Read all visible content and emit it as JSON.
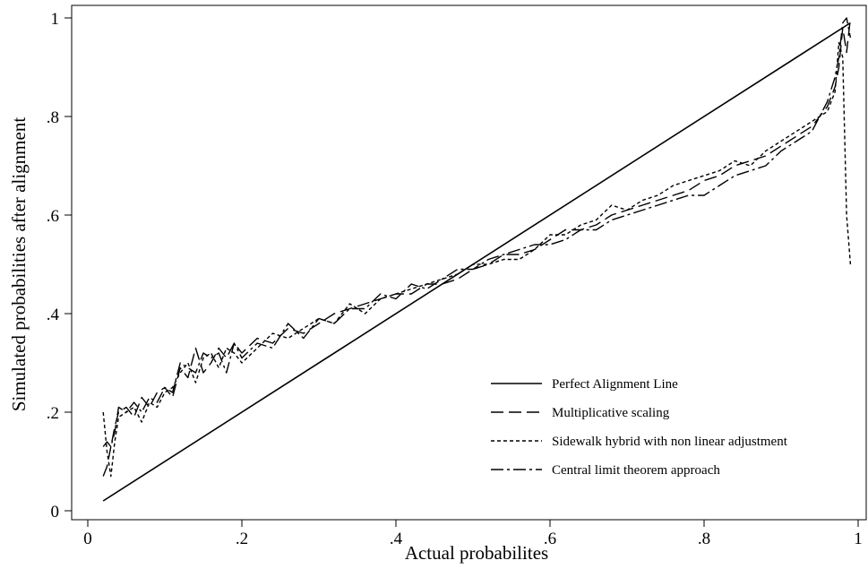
{
  "chart_data": {
    "type": "line",
    "xlabel": "Actual probabilites",
    "ylabel": "Simulated probabilities after alignment",
    "xlim": [
      0,
      1
    ],
    "ylim": [
      0,
      1
    ],
    "x_ticks": [
      {
        "value": 0,
        "label": "0"
      },
      {
        "value": 0.2,
        "label": ".2"
      },
      {
        "value": 0.4,
        "label": ".4"
      },
      {
        "value": 0.6,
        "label": ".6"
      },
      {
        "value": 0.8,
        "label": ".8"
      },
      {
        "value": 1,
        "label": "1"
      }
    ],
    "y_ticks": [
      {
        "value": 0,
        "label": "0"
      },
      {
        "value": 0.2,
        "label": ".2"
      },
      {
        "value": 0.4,
        "label": ".4"
      },
      {
        "value": 0.6,
        "label": ".6"
      },
      {
        "value": 0.8,
        "label": ".8"
      },
      {
        "value": 1,
        "label": "1"
      }
    ],
    "grid": false,
    "legend_position": "bottom-right",
    "series": [
      {
        "name": "Perfect Alignment Line",
        "style": "solid",
        "color": "#000000",
        "x": [
          0.02,
          0.99
        ],
        "y": [
          0.02,
          0.99
        ]
      },
      {
        "name": "Multiplicative scaling",
        "style": "dash",
        "color": "#000000",
        "x": [
          0.02,
          0.025,
          0.03,
          0.035,
          0.04,
          0.05,
          0.06,
          0.07,
          0.08,
          0.09,
          0.1,
          0.11,
          0.12,
          0.13,
          0.14,
          0.15,
          0.16,
          0.17,
          0.18,
          0.19,
          0.2,
          0.22,
          0.24,
          0.26,
          0.28,
          0.3,
          0.32,
          0.34,
          0.36,
          0.38,
          0.4,
          0.42,
          0.44,
          0.46,
          0.48,
          0.5,
          0.52,
          0.54,
          0.56,
          0.58,
          0.6,
          0.62,
          0.64,
          0.66,
          0.68,
          0.7,
          0.72,
          0.74,
          0.76,
          0.78,
          0.8,
          0.82,
          0.84,
          0.86,
          0.88,
          0.9,
          0.92,
          0.94,
          0.95,
          0.96,
          0.97,
          0.975,
          0.98,
          0.985,
          0.99
        ],
        "y": [
          0.07,
          0.09,
          0.13,
          0.17,
          0.2,
          0.21,
          0.19,
          0.23,
          0.21,
          0.24,
          0.25,
          0.23,
          0.29,
          0.27,
          0.33,
          0.28,
          0.3,
          0.33,
          0.31,
          0.34,
          0.32,
          0.35,
          0.34,
          0.37,
          0.36,
          0.38,
          0.4,
          0.41,
          0.42,
          0.43,
          0.44,
          0.44,
          0.46,
          0.46,
          0.47,
          0.49,
          0.5,
          0.52,
          0.52,
          0.53,
          0.55,
          0.57,
          0.57,
          0.58,
          0.6,
          0.61,
          0.62,
          0.63,
          0.64,
          0.65,
          0.67,
          0.68,
          0.7,
          0.71,
          0.72,
          0.74,
          0.76,
          0.78,
          0.8,
          0.82,
          0.86,
          0.9,
          0.98,
          0.93,
          1.0
        ]
      },
      {
        "name": "Sidewalk hybrid with non linear adjustment",
        "style": "dot",
        "color": "#000000",
        "x": [
          0.02,
          0.025,
          0.03,
          0.035,
          0.04,
          0.05,
          0.06,
          0.07,
          0.08,
          0.09,
          0.1,
          0.11,
          0.12,
          0.13,
          0.14,
          0.15,
          0.16,
          0.17,
          0.18,
          0.19,
          0.2,
          0.22,
          0.24,
          0.26,
          0.28,
          0.3,
          0.32,
          0.34,
          0.36,
          0.38,
          0.4,
          0.42,
          0.44,
          0.46,
          0.48,
          0.5,
          0.52,
          0.54,
          0.56,
          0.58,
          0.6,
          0.62,
          0.64,
          0.66,
          0.68,
          0.7,
          0.72,
          0.74,
          0.76,
          0.78,
          0.8,
          0.82,
          0.84,
          0.86,
          0.88,
          0.9,
          0.92,
          0.94,
          0.95,
          0.96,
          0.97,
          0.975,
          0.98,
          0.985,
          0.99
        ],
        "y": [
          0.2,
          0.12,
          0.07,
          0.14,
          0.19,
          0.2,
          0.21,
          0.18,
          0.22,
          0.21,
          0.24,
          0.25,
          0.28,
          0.3,
          0.26,
          0.31,
          0.32,
          0.29,
          0.33,
          0.32,
          0.3,
          0.33,
          0.36,
          0.35,
          0.37,
          0.39,
          0.38,
          0.42,
          0.4,
          0.43,
          0.44,
          0.45,
          0.46,
          0.47,
          0.48,
          0.5,
          0.5,
          0.51,
          0.51,
          0.53,
          0.56,
          0.56,
          0.58,
          0.59,
          0.62,
          0.61,
          0.63,
          0.64,
          0.66,
          0.67,
          0.68,
          0.69,
          0.71,
          0.7,
          0.73,
          0.75,
          0.77,
          0.79,
          0.8,
          0.81,
          0.85,
          0.95,
          0.92,
          0.6,
          0.5
        ]
      },
      {
        "name": "Central limit theorem approach",
        "style": "dashdot",
        "color": "#000000",
        "x": [
          0.02,
          0.025,
          0.03,
          0.035,
          0.04,
          0.05,
          0.06,
          0.07,
          0.08,
          0.09,
          0.1,
          0.11,
          0.12,
          0.13,
          0.14,
          0.15,
          0.16,
          0.17,
          0.18,
          0.19,
          0.2,
          0.22,
          0.24,
          0.26,
          0.28,
          0.3,
          0.32,
          0.34,
          0.36,
          0.38,
          0.4,
          0.42,
          0.44,
          0.46,
          0.48,
          0.5,
          0.52,
          0.54,
          0.56,
          0.58,
          0.6,
          0.62,
          0.64,
          0.66,
          0.68,
          0.7,
          0.72,
          0.74,
          0.76,
          0.78,
          0.8,
          0.82,
          0.84,
          0.86,
          0.88,
          0.9,
          0.92,
          0.94,
          0.95,
          0.96,
          0.97,
          0.975,
          0.98,
          0.985,
          0.99
        ],
        "y": [
          0.13,
          0.14,
          0.13,
          0.16,
          0.21,
          0.2,
          0.22,
          0.2,
          0.23,
          0.22,
          0.25,
          0.24,
          0.3,
          0.29,
          0.28,
          0.32,
          0.31,
          0.32,
          0.28,
          0.34,
          0.31,
          0.34,
          0.33,
          0.38,
          0.35,
          0.39,
          0.38,
          0.41,
          0.41,
          0.44,
          0.43,
          0.46,
          0.45,
          0.47,
          0.49,
          0.49,
          0.51,
          0.52,
          0.53,
          0.54,
          0.54,
          0.55,
          0.57,
          0.57,
          0.59,
          0.6,
          0.61,
          0.62,
          0.63,
          0.64,
          0.64,
          0.66,
          0.68,
          0.69,
          0.7,
          0.73,
          0.75,
          0.77,
          0.8,
          0.83,
          0.88,
          0.92,
          0.99,
          1.0,
          0.96
        ]
      }
    ]
  }
}
